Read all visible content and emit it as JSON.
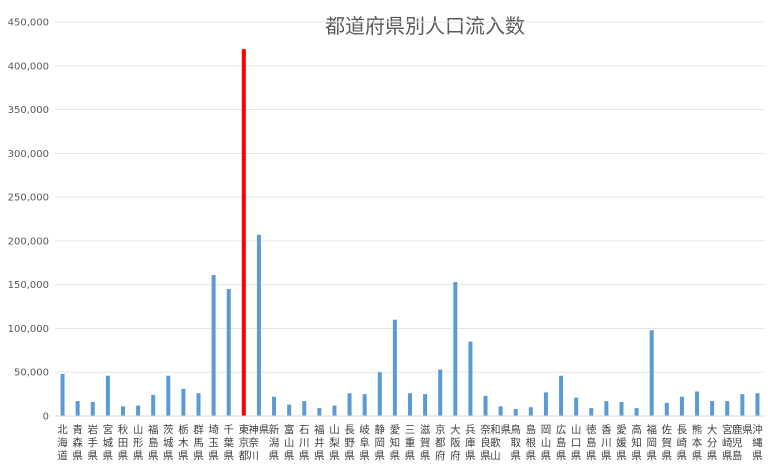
{
  "chart_data": {
    "type": "bar",
    "title": "都道府県別人口流入数",
    "xlabel": "",
    "ylabel": "",
    "ylim": [
      0,
      450000
    ],
    "yticks": [
      "0",
      "50,000",
      "100,000",
      "150,000",
      "200,000",
      "250,000",
      "300,000",
      "350,000",
      "400,000",
      "450,000"
    ],
    "grid": true,
    "legend": "none",
    "categories": [
      "北海道",
      "青森県",
      "岩手県",
      "宮城県",
      "秋田県",
      "山形県",
      "福島県",
      "茨城県",
      "栃木県",
      "群馬県",
      "埼玉県",
      "千葉県",
      "東京都",
      "神奈川県",
      "新潟県",
      "富山県",
      "石川県",
      "福井県",
      "山梨県",
      "長野県",
      "岐阜県",
      "静岡県",
      "愛知県",
      "三重県",
      "滋賀県",
      "京都府",
      "大阪府",
      "兵庫県",
      "奈良県",
      "和歌山県",
      "鳥取県",
      "島根県",
      "岡山県",
      "広島県",
      "山口県",
      "徳島県",
      "香川県",
      "愛媛県",
      "高知県",
      "福岡県",
      "佐賀県",
      "長崎県",
      "熊本県",
      "大分県",
      "宮崎県",
      "鹿児島県",
      "沖縄県"
    ],
    "values": [
      48000,
      17000,
      16000,
      46000,
      11000,
      12000,
      24000,
      46000,
      31000,
      26000,
      161000,
      145000,
      419000,
      207000,
      22000,
      13000,
      17000,
      9000,
      12000,
      26000,
      25000,
      50000,
      110000,
      26000,
      25000,
      53000,
      153000,
      85000,
      23000,
      11000,
      8000,
      10000,
      27000,
      46000,
      21000,
      9000,
      17000,
      16000,
      9000,
      98000,
      15000,
      22000,
      28000,
      17000,
      17000,
      25000,
      26000
    ],
    "highlight_index": 12,
    "colors": {
      "bar": "#5b9bd5",
      "highlight": "#ff0000"
    }
  }
}
